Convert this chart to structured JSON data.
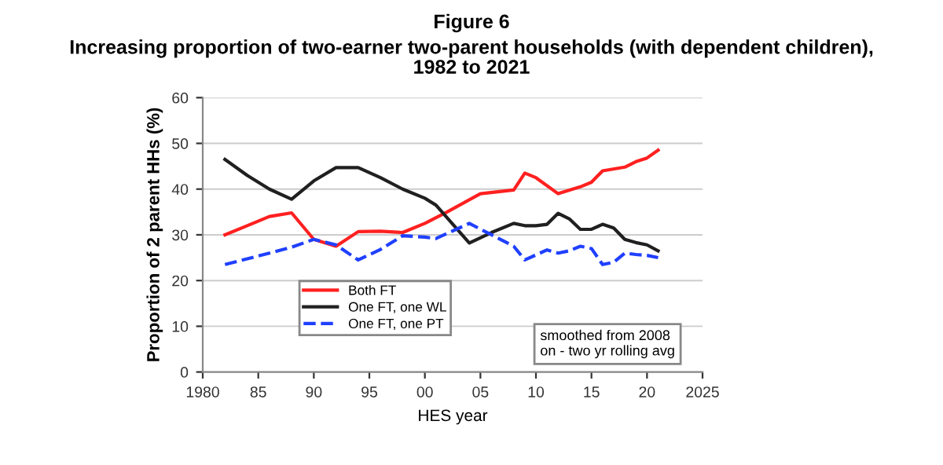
{
  "chart_data": {
    "type": "line",
    "title": "Figure 6",
    "subtitle": "Increasing proportion of two-earner two-parent households (with dependent children),\n1982 to 2021",
    "xlabel": "HES year",
    "ylabel": "Proportion of 2 parent HHs (%)",
    "xlim": [
      1980,
      2025
    ],
    "xticks": [
      1980,
      {
        "value": 1985,
        "label": "85"
      },
      {
        "value": 1990,
        "label": "90"
      },
      {
        "value": 1995,
        "label": "95"
      },
      {
        "value": 2000,
        "label": "00"
      },
      {
        "value": 2005,
        "label": "05"
      },
      {
        "value": 2010,
        "label": "10"
      },
      {
        "value": 2015,
        "label": "15"
      },
      {
        "value": 2020,
        "label": "20"
      },
      2025
    ],
    "ylim": [
      0,
      60
    ],
    "yticks": [
      0,
      10,
      20,
      30,
      40,
      50,
      60
    ],
    "grid": "y",
    "legend": "bottom left",
    "marker": "none",
    "annotations": [
      "smoothed from 2008\non - two yr rolling avg"
    ],
    "series": [
      {
        "name": "Both FT",
        "color": "#ff2020",
        "line_style": "solid",
        "x": [
          1982,
          1984,
          1986,
          1988,
          1990,
          1992,
          1994,
          1996,
          1998,
          2000,
          2002,
          2005,
          2008,
          2009,
          2010,
          2012,
          2014,
          2015,
          2016,
          2018,
          2019,
          2020,
          2021
        ],
        "values": [
          30,
          32,
          34,
          34.8,
          29,
          27.5,
          30.7,
          30.8,
          30.5,
          32.5,
          35,
          39,
          39.8,
          43.5,
          42.5,
          39,
          40.5,
          41.5,
          44,
          44.8,
          46,
          46.8,
          48.5
        ]
      },
      {
        "name": "One FT, one WL",
        "color": "#202020",
        "line_style": "solid",
        "x": [
          1982,
          1984,
          1986,
          1988,
          1990,
          1992,
          1994,
          1996,
          1998,
          2000,
          2001,
          2004,
          2006,
          2008,
          2009,
          2010,
          2011,
          2012,
          2013,
          2014,
          2015,
          2016,
          2017,
          2018,
          2019,
          2020,
          2021
        ],
        "values": [
          46.5,
          43,
          40,
          37.8,
          41.8,
          44.7,
          44.7,
          42.5,
          40,
          38,
          36.5,
          28.2,
          30.5,
          32.5,
          32,
          32,
          32.3,
          34.7,
          33.5,
          31.2,
          31.2,
          32.3,
          31.5,
          29,
          28.3,
          27.8,
          26.5
        ]
      },
      {
        "name": "One FT, one PT",
        "color": "#2040ff",
        "line_style": "dashed",
        "x": [
          1982,
          1986,
          1988,
          1990,
          1992,
          1994,
          1996,
          1998,
          2000,
          2001,
          2004,
          2006,
          2008,
          2009,
          2011,
          2012,
          2013,
          2014,
          2015,
          2016,
          2017,
          2018,
          2019,
          2020,
          2021
        ],
        "values": [
          23.5,
          26,
          27.3,
          29,
          27.8,
          24.5,
          26.8,
          29.8,
          29.5,
          29.2,
          32.5,
          30,
          27.5,
          24.5,
          26.7,
          26,
          26.5,
          27.5,
          27,
          23.5,
          24,
          26,
          25.7,
          25.5,
          25
        ]
      }
    ]
  }
}
